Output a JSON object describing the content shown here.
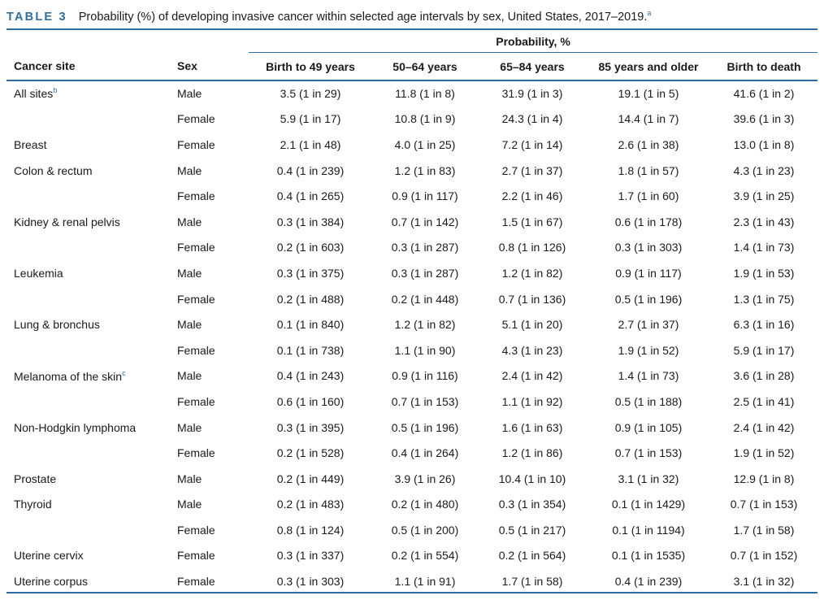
{
  "caption": {
    "label": "TABLE 3",
    "title": "Probability (%) of developing invasive cancer within selected age intervals by sex, United States, 2017–2019.",
    "footnote_mark": "a"
  },
  "header": {
    "group_label": "Probability, %",
    "columns": [
      "Cancer site",
      "Sex",
      "Birth to 49 years",
      "50–64 years",
      "65–84 years",
      "85 years and older",
      "Birth to death"
    ]
  },
  "rows": [
    {
      "site": "All sites",
      "site_mark": "b",
      "sex": "Male",
      "values": [
        "3.5 (1 in 29)",
        "11.8 (1 in 8)",
        "31.9 (1 in 3)",
        "19.1 (1 in 5)",
        "41.6 (1 in 2)"
      ]
    },
    {
      "site": "",
      "site_mark": "",
      "sex": "Female",
      "values": [
        "5.9 (1 in 17)",
        "10.8 (1 in 9)",
        "24.3 (1 in 4)",
        "14.4 (1 in 7)",
        "39.6 (1 in 3)"
      ]
    },
    {
      "site": "Breast",
      "site_mark": "",
      "sex": "Female",
      "values": [
        "2.1 (1 in 48)",
        "4.0 (1 in 25)",
        "7.2 (1 in 14)",
        "2.6 (1 in 38)",
        "13.0 (1 in 8)"
      ]
    },
    {
      "site": "Colon & rectum",
      "site_mark": "",
      "sex": "Male",
      "values": [
        "0.4 (1 in 239)",
        "1.2 (1 in 83)",
        "2.7 (1 in 37)",
        "1.8 (1 in 57)",
        "4.3 (1 in 23)"
      ]
    },
    {
      "site": "",
      "site_mark": "",
      "sex": "Female",
      "values": [
        "0.4 (1 in 265)",
        "0.9 (1 in 117)",
        "2.2 (1 in 46)",
        "1.7 (1 in 60)",
        "3.9 (1 in 25)"
      ]
    },
    {
      "site": "Kidney & renal pelvis",
      "site_mark": "",
      "sex": "Male",
      "values": [
        "0.3 (1 in 384)",
        "0.7 (1 in 142)",
        "1.5 (1 in 67)",
        "0.6 (1 in 178)",
        "2.3 (1 in 43)"
      ]
    },
    {
      "site": "",
      "site_mark": "",
      "sex": "Female",
      "values": [
        "0.2 (1 in 603)",
        "0.3 (1 in 287)",
        "0.8 (1 in 126)",
        "0.3 (1 in 303)",
        "1.4 (1 in 73)"
      ]
    },
    {
      "site": "Leukemia",
      "site_mark": "",
      "sex": "Male",
      "values": [
        "0.3 (1 in 375)",
        "0.3 (1 in 287)",
        "1.2 (1 in 82)",
        "0.9 (1 in 117)",
        "1.9 (1 in 53)"
      ]
    },
    {
      "site": "",
      "site_mark": "",
      "sex": "Female",
      "values": [
        "0.2 (1 in 488)",
        "0.2 (1 in 448)",
        "0.7 (1 in 136)",
        "0.5 (1 in 196)",
        "1.3 (1 in 75)"
      ]
    },
    {
      "site": "Lung & bronchus",
      "site_mark": "",
      "sex": "Male",
      "values": [
        "0.1 (1 in 840)",
        "1.2 (1 in 82)",
        "5.1 (1 in 20)",
        "2.7 (1 in 37)",
        "6.3 (1 in 16)"
      ]
    },
    {
      "site": "",
      "site_mark": "",
      "sex": "Female",
      "values": [
        "0.1 (1 in 738)",
        "1.1 (1 in 90)",
        "4.3 (1 in 23)",
        "1.9 (1 in 52)",
        "5.9 (1 in 17)"
      ]
    },
    {
      "site": "Melanoma of the skin",
      "site_mark": "c",
      "sex": "Male",
      "values": [
        "0.4 (1 in 243)",
        "0.9 (1 in 116)",
        "2.4 (1 in 42)",
        "1.4 (1 in 73)",
        "3.6 (1 in 28)"
      ]
    },
    {
      "site": "",
      "site_mark": "",
      "sex": "Female",
      "values": [
        "0.6 (1 in 160)",
        "0.7 (1 in 153)",
        "1.1 (1 in 92)",
        "0.5 (1 in 188)",
        "2.5 (1 in 41)"
      ]
    },
    {
      "site": "Non-Hodgkin lymphoma",
      "site_mark": "",
      "sex": "Male",
      "values": [
        "0.3 (1 in 395)",
        "0.5 (1 in 196)",
        "1.6 (1 in 63)",
        "0.9 (1 in 105)",
        "2.4 (1 in 42)"
      ]
    },
    {
      "site": "",
      "site_mark": "",
      "sex": "Female",
      "values": [
        "0.2 (1 in 528)",
        "0.4 (1 in 264)",
        "1.2 (1 in 86)",
        "0.7 (1 in 153)",
        "1.9 (1 in 52)"
      ]
    },
    {
      "site": "Prostate",
      "site_mark": "",
      "sex": "Male",
      "values": [
        "0.2 (1 in 449)",
        "3.9 (1 in 26)",
        "10.4 (1 in 10)",
        "3.1 (1 in 32)",
        "12.9 (1 in 8)"
      ]
    },
    {
      "site": "Thyroid",
      "site_mark": "",
      "sex": "Male",
      "values": [
        "0.2 (1 in 483)",
        "0.2 (1 in 480)",
        "0.3 (1 in 354)",
        "0.1 (1 in 1429)",
        "0.7 (1 in 153)"
      ]
    },
    {
      "site": "",
      "site_mark": "",
      "sex": "Female",
      "values": [
        "0.8 (1 in 124)",
        "0.5 (1 in 200)",
        "0.5 (1 in 217)",
        "0.1 (1 in 1194)",
        "1.7 (1 in 58)"
      ]
    },
    {
      "site": "Uterine cervix",
      "site_mark": "",
      "sex": "Female",
      "values": [
        "0.3 (1 in 337)",
        "0.2 (1 in 554)",
        "0.2 (1 in 564)",
        "0.1 (1 in 1535)",
        "0.7 (1 in 152)"
      ]
    },
    {
      "site": "Uterine corpus",
      "site_mark": "",
      "sex": "Female",
      "values": [
        "0.3 (1 in 303)",
        "1.1 (1 in 91)",
        "1.7 (1 in 58)",
        "0.4 (1 in 239)",
        "3.1 (1 in 32)"
      ]
    }
  ]
}
